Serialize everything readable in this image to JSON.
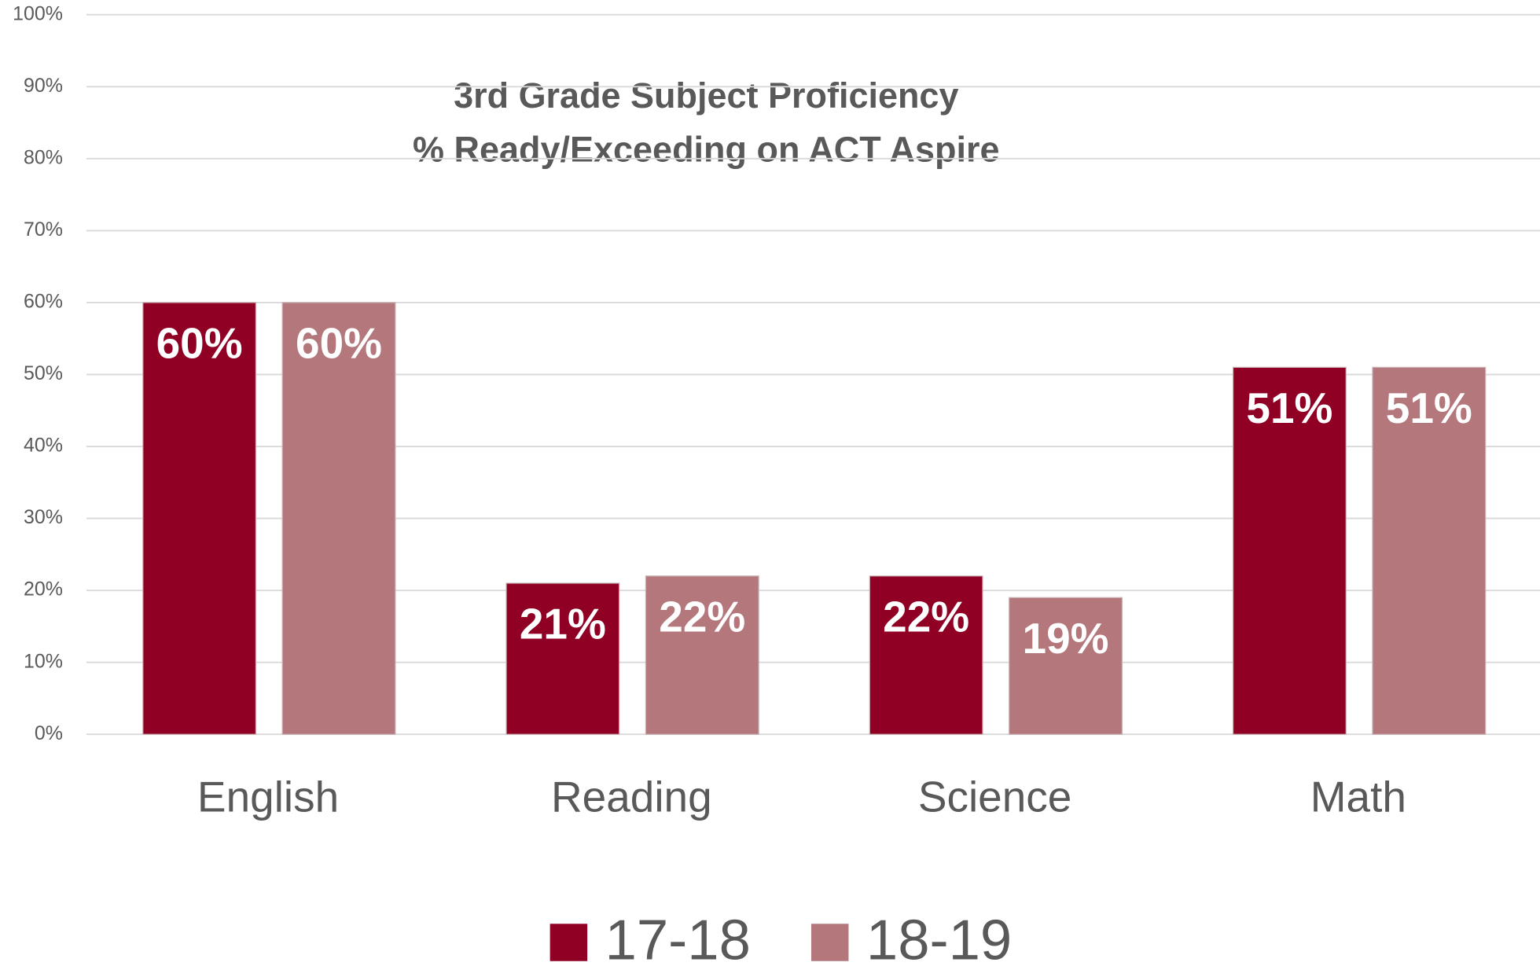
{
  "chart_data": {
    "type": "bar",
    "title": "3rd Grade Subject Proficiency",
    "subtitle": "% Ready/Exceeding on ACT Aspire",
    "categories": [
      "English",
      "Reading",
      "Science",
      "Math"
    ],
    "series": [
      {
        "name": "17-18",
        "color": "#900024",
        "values": [
          60,
          21,
          22,
          51
        ],
        "value_labels": [
          "60%",
          "21%",
          "22%",
          "51%"
        ]
      },
      {
        "name": "18-19",
        "color": "#b3777c",
        "values": [
          60,
          22,
          19,
          51
        ],
        "value_labels": [
          "60%",
          "22%",
          "19%",
          "51%"
        ]
      }
    ],
    "ylim": [
      0,
      100
    ],
    "yticks": [
      {
        "value": 0,
        "label": "0%"
      },
      {
        "value": 10,
        "label": "10%"
      },
      {
        "value": 20,
        "label": "20%"
      },
      {
        "value": 30,
        "label": "30%"
      },
      {
        "value": 40,
        "label": "40%"
      },
      {
        "value": 50,
        "label": "50%"
      },
      {
        "value": 60,
        "label": "60%"
      },
      {
        "value": 70,
        "label": "70%"
      },
      {
        "value": 80,
        "label": "80%"
      },
      {
        "value": 90,
        "label": "90%"
      },
      {
        "value": 100,
        "label": "100%"
      }
    ],
    "grid": true,
    "legend": "bottom"
  }
}
